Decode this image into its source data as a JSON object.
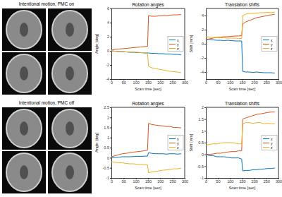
{
  "panels": [
    {
      "label": "Intentional motion, PMC on"
    },
    {
      "label": "Intentional motion, PMC off"
    }
  ],
  "chart_data": [
    {
      "type": "line",
      "title": "Rotation angles",
      "xlabel": "Scan time [sec]",
      "ylabel": "Angle [deg]",
      "x": [
        0,
        15,
        30,
        45,
        60,
        75,
        90,
        105,
        120,
        135,
        148,
        152,
        165,
        180,
        195,
        210,
        225,
        240,
        255,
        270,
        285
      ],
      "xlim": [
        0,
        300
      ],
      "xticks": [
        0,
        50,
        100,
        150,
        200,
        250,
        300
      ],
      "ylim": [
        -4,
        6
      ],
      "yticks": [
        -4,
        -2,
        0,
        2,
        4,
        6
      ],
      "legend": "center right",
      "series": [
        {
          "name": "x",
          "color": "#0072bd",
          "values": [
            0,
            -0.05,
            -0.1,
            -0.1,
            -0.15,
            -0.2,
            -0.2,
            -0.25,
            -0.25,
            -0.3,
            -0.3,
            -0.3,
            -0.35,
            -0.35,
            -0.4,
            -0.4,
            -0.45,
            -0.45,
            -0.5,
            -0.5,
            -0.55
          ]
        },
        {
          "name": "y",
          "color": "#d95319",
          "values": [
            0.1,
            0.2,
            0.25,
            0.3,
            0.35,
            0.4,
            0.45,
            0.5,
            0.55,
            0.6,
            0.65,
            5.0,
            4.9,
            4.9,
            4.95,
            5.0,
            5.0,
            5.05,
            5.1,
            5.1,
            5.15
          ]
        },
        {
          "name": "z",
          "color": "#edb120",
          "values": [
            0,
            -0.05,
            -0.1,
            -0.1,
            -0.15,
            -0.15,
            -0.2,
            -0.2,
            -0.25,
            -0.25,
            -0.3,
            -2.2,
            -2.4,
            -2.5,
            -2.6,
            -2.7,
            -2.8,
            -2.9,
            -2.95,
            -3.0,
            -3.1
          ]
        }
      ]
    },
    {
      "type": "line",
      "title": "Translation shifts",
      "xlabel": "Scan time [sec]",
      "ylabel": "Shift [mm]",
      "x": [
        0,
        15,
        30,
        45,
        60,
        75,
        90,
        105,
        120,
        135,
        148,
        152,
        165,
        180,
        195,
        210,
        225,
        240,
        255,
        270,
        285
      ],
      "xlim": [
        0,
        300
      ],
      "xticks": [
        0,
        50,
        100,
        150,
        200,
        250,
        300
      ],
      "ylim": [
        -5,
        5
      ],
      "yticks": [
        -4,
        -2,
        0,
        2,
        4
      ],
      "legend": "center right",
      "series": [
        {
          "name": "x",
          "color": "#0072bd",
          "values": [
            0.6,
            0.6,
            0.55,
            0.5,
            0.5,
            0.45,
            0.5,
            0.45,
            0.4,
            0.4,
            0.4,
            -3.9,
            -4.0,
            -4.0,
            -4.05,
            -4.0,
            -4.05,
            -4.1,
            -4.1,
            -4.1,
            -4.15
          ]
        },
        {
          "name": "y",
          "color": "#d95319",
          "values": [
            0.6,
            0.7,
            0.8,
            0.9,
            0.95,
            1.0,
            1.0,
            1.05,
            1.1,
            1.1,
            1.15,
            2.8,
            3.1,
            3.3,
            3.5,
            3.7,
            3.8,
            3.9,
            4.0,
            4.1,
            4.2
          ]
        },
        {
          "name": "z",
          "color": "#edb120",
          "values": [
            1.0,
            0.95,
            0.9,
            0.9,
            0.85,
            0.85,
            0.8,
            0.8,
            0.8,
            0.75,
            0.75,
            4.0,
            4.2,
            4.3,
            4.3,
            4.35,
            4.4,
            4.4,
            4.45,
            4.4,
            4.5
          ]
        }
      ]
    },
    {
      "type": "line",
      "title": "Rotation angles",
      "xlabel": "Scan time [sec]",
      "ylabel": "Angle [deg]",
      "x": [
        0,
        15,
        30,
        45,
        60,
        75,
        90,
        105,
        120,
        135,
        148,
        152,
        165,
        180,
        195,
        210,
        225,
        240,
        255,
        270,
        285
      ],
      "xlim": [
        0,
        300
      ],
      "xticks": [
        0,
        50,
        100,
        150,
        200,
        250,
        300
      ],
      "ylim": [
        -1,
        2.5
      ],
      "yticks": [
        -1,
        -0.5,
        0,
        0.5,
        1,
        1.5,
        2,
        2.5
      ],
      "legend": "center right",
      "series": [
        {
          "name": "x",
          "color": "#0072bd",
          "values": [
            0,
            0.02,
            0.03,
            0.05,
            0.05,
            0.05,
            0.06,
            0.07,
            0.07,
            0.08,
            0.08,
            0.25,
            0.22,
            0.2,
            0.2,
            0.2,
            0.18,
            0.2,
            0.2,
            0.18,
            0.2
          ]
        },
        {
          "name": "y",
          "color": "#d95319",
          "values": [
            0.05,
            0.1,
            0.15,
            0.2,
            0.22,
            0.25,
            0.28,
            0.3,
            0.32,
            0.35,
            0.38,
            1.7,
            1.65,
            1.62,
            1.6,
            1.58,
            1.55,
            1.55,
            1.5,
            1.5,
            1.48
          ]
        },
        {
          "name": "z",
          "color": "#edb120",
          "values": [
            -0.2,
            -0.22,
            -0.25,
            -0.25,
            -0.28,
            -0.3,
            -0.3,
            -0.32,
            -0.33,
            -0.35,
            -0.35,
            -0.75,
            -0.7,
            -0.68,
            -0.65,
            -0.62,
            -0.6,
            -0.58,
            -0.55,
            -0.55,
            -0.52
          ]
        }
      ]
    },
    {
      "type": "line",
      "title": "Translation shifts",
      "xlabel": "Scan time [sec]",
      "ylabel": "Shift [mm]",
      "x": [
        0,
        15,
        30,
        45,
        60,
        75,
        90,
        105,
        120,
        135,
        148,
        152,
        165,
        180,
        195,
        210,
        225,
        240,
        255,
        270,
        285
      ],
      "xlim": [
        0,
        300
      ],
      "xticks": [
        0,
        50,
        100,
        150,
        200,
        250,
        300
      ],
      "ylim": [
        -1,
        2
      ],
      "yticks": [
        -1,
        -0.5,
        0,
        0.5,
        1,
        1.5,
        2
      ],
      "legend": "center right",
      "series": [
        {
          "name": "x",
          "color": "#0072bd",
          "values": [
            0,
            -0.05,
            -0.05,
            -0.1,
            -0.1,
            -0.1,
            -0.12,
            -0.15,
            -0.15,
            -0.15,
            -0.2,
            -0.7,
            -0.68,
            -0.68,
            -0.65,
            -0.65,
            -0.63,
            -0.62,
            -0.6,
            -0.6,
            -0.58
          ]
        },
        {
          "name": "y",
          "color": "#d95319",
          "values": [
            0,
            0,
            0.02,
            0.05,
            0.05,
            0.08,
            0.1,
            0.12,
            0.12,
            0.15,
            0.15,
            1.5,
            1.55,
            1.6,
            1.65,
            1.7,
            1.72,
            1.75,
            1.78,
            1.8,
            1.8
          ]
        },
        {
          "name": "z",
          "color": "#edb120",
          "values": [
            0.4,
            0.42,
            0.45,
            0.45,
            0.48,
            0.5,
            0.5,
            0.5,
            0.48,
            0.45,
            0.45,
            1.3,
            1.35,
            1.35,
            1.32,
            1.35,
            1.35,
            1.3,
            1.32,
            1.3,
            1.3
          ]
        }
      ]
    }
  ]
}
